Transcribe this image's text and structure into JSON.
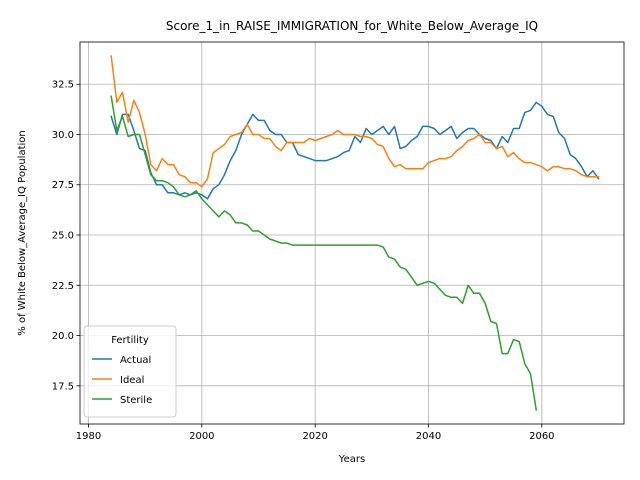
{
  "chart_data": {
    "type": "line",
    "title": "Score_1_in_RAISE_IMMIGRATION_for_White_Below_Average_IQ",
    "xlabel": "Years",
    "ylabel": "% of White Below_Average_IQ Population",
    "xlim": [
      1978.5,
      2074.5
    ],
    "ylim": [
      15.6,
      34.6
    ],
    "xticks": [
      1980,
      2000,
      2020,
      2040,
      2060
    ],
    "xtick_labels": [
      "1980",
      "2000",
      "2020",
      "2040",
      "2060"
    ],
    "yticks": [
      17.5,
      20.0,
      22.5,
      25.0,
      27.5,
      30.0,
      32.5
    ],
    "ytick_labels": [
      "17.5",
      "20.0",
      "22.5",
      "25.0",
      "27.5",
      "30.0",
      "32.5"
    ],
    "grid": true,
    "legend": {
      "title": "Fertility",
      "placement": "lower-left"
    },
    "series": [
      {
        "name": "Actual",
        "color": "#1f77b4",
        "x": [
          1984,
          1985,
          1986,
          1987,
          1988,
          1989,
          1990,
          1991,
          1992,
          1993,
          1994,
          1995,
          1996,
          1997,
          1998,
          1999,
          2000,
          2001,
          2002,
          2003,
          2004,
          2005,
          2006,
          2007,
          2008,
          2009,
          2010,
          2011,
          2012,
          2013,
          2014,
          2015,
          2016,
          2017,
          2018,
          2019,
          2020,
          2021,
          2022,
          2023,
          2024,
          2025,
          2026,
          2027,
          2028,
          2029,
          2030,
          2031,
          2032,
          2033,
          2034,
          2035,
          2036,
          2037,
          2038,
          2039,
          2040,
          2041,
          2042,
          2043,
          2044,
          2045,
          2046,
          2047,
          2048,
          2049,
          2050,
          2051,
          2052,
          2053,
          2054,
          2055,
          2056,
          2057,
          2058,
          2059,
          2060,
          2061,
          2062,
          2063,
          2064,
          2065,
          2066,
          2067,
          2068,
          2069,
          2070
        ],
        "y": [
          30.9,
          30.0,
          31.0,
          31.0,
          30.2,
          29.3,
          29.2,
          28.1,
          27.5,
          27.5,
          27.1,
          27.1,
          27.0,
          27.1,
          27.0,
          27.1,
          27.0,
          26.8,
          27.3,
          27.5,
          28.0,
          28.7,
          29.2,
          30.0,
          30.5,
          31.0,
          30.7,
          30.7,
          30.2,
          30.0,
          30.0,
          29.6,
          29.6,
          29.0,
          28.9,
          28.8,
          28.7,
          28.7,
          28.7,
          28.8,
          28.9,
          29.1,
          29.2,
          29.9,
          29.6,
          30.3,
          30.0,
          30.2,
          30.4,
          30.0,
          30.4,
          29.3,
          29.4,
          29.7,
          29.9,
          30.4,
          30.4,
          30.3,
          30.0,
          30.2,
          30.4,
          29.8,
          30.1,
          30.3,
          30.3,
          30.0,
          29.8,
          29.7,
          29.3,
          29.9,
          29.6,
          30.3,
          30.3,
          31.1,
          31.2,
          31.6,
          31.4,
          31.0,
          30.9,
          30.1,
          29.8,
          29.0,
          28.8,
          28.4,
          27.9,
          28.2,
          27.8
        ]
      },
      {
        "name": "Ideal",
        "color": "#ff7f0e",
        "x": [
          1984,
          1985,
          1986,
          1987,
          1988,
          1989,
          1990,
          1991,
          1992,
          1993,
          1994,
          1995,
          1996,
          1997,
          1998,
          1999,
          2000,
          2001,
          2002,
          2003,
          2004,
          2005,
          2006,
          2007,
          2008,
          2009,
          2010,
          2011,
          2012,
          2013,
          2014,
          2015,
          2016,
          2017,
          2018,
          2019,
          2020,
          2021,
          2022,
          2023,
          2024,
          2025,
          2026,
          2027,
          2028,
          2029,
          2030,
          2031,
          2032,
          2033,
          2034,
          2035,
          2036,
          2037,
          2038,
          2039,
          2040,
          2041,
          2042,
          2043,
          2044,
          2045,
          2046,
          2047,
          2048,
          2049,
          2050,
          2051,
          2052,
          2053,
          2054,
          2055,
          2056,
          2057,
          2058,
          2059,
          2060,
          2061,
          2062,
          2063,
          2064,
          2065,
          2066,
          2067,
          2068,
          2069,
          2070
        ],
        "y": [
          33.9,
          31.6,
          32.1,
          30.6,
          31.7,
          31.1,
          30.0,
          28.5,
          28.2,
          28.8,
          28.5,
          28.5,
          28.0,
          27.9,
          27.6,
          27.6,
          27.4,
          27.8,
          29.1,
          29.3,
          29.5,
          29.9,
          30.0,
          30.1,
          30.5,
          30.0,
          30.0,
          29.8,
          29.8,
          29.4,
          29.2,
          29.6,
          29.6,
          29.6,
          29.6,
          29.8,
          29.7,
          29.8,
          29.9,
          30.0,
          30.2,
          30.0,
          30.0,
          30.0,
          29.9,
          29.9,
          29.8,
          29.5,
          29.4,
          28.8,
          28.4,
          28.5,
          28.3,
          28.3,
          28.3,
          28.3,
          28.6,
          28.7,
          28.8,
          28.8,
          28.9,
          29.2,
          29.4,
          29.7,
          29.8,
          30.0,
          29.6,
          29.6,
          29.3,
          29.4,
          28.9,
          29.1,
          28.8,
          28.6,
          28.6,
          28.5,
          28.4,
          28.2,
          28.4,
          28.4,
          28.3,
          28.3,
          28.2,
          28.0,
          27.9,
          27.9,
          27.9
        ]
      },
      {
        "name": "Sterile",
        "color": "#2ca02c",
        "x": [
          1984,
          1985,
          1986,
          1987,
          1988,
          1989,
          1990,
          1991,
          1992,
          1993,
          1994,
          1995,
          1996,
          1997,
          1998,
          1999,
          2000,
          2001,
          2002,
          2003,
          2004,
          2005,
          2006,
          2007,
          2008,
          2009,
          2010,
          2011,
          2012,
          2013,
          2014,
          2015,
          2016,
          2017,
          2018,
          2019,
          2020,
          2021,
          2022,
          2023,
          2024,
          2025,
          2026,
          2027,
          2028,
          2029,
          2030,
          2031,
          2032,
          2033,
          2034,
          2035,
          2036,
          2037,
          2038,
          2039,
          2040,
          2041,
          2042,
          2043,
          2044,
          2045,
          2046,
          2047,
          2048,
          2049,
          2050,
          2051,
          2052,
          2053,
          2054,
          2055,
          2056,
          2057,
          2058,
          2059
        ],
        "y": [
          31.9,
          30.2,
          30.9,
          29.9,
          30.0,
          30.0,
          29.0,
          28.0,
          27.7,
          27.7,
          27.6,
          27.4,
          27.0,
          26.9,
          27.0,
          27.2,
          26.8,
          26.5,
          26.2,
          25.9,
          26.2,
          26.0,
          25.6,
          25.6,
          25.5,
          25.2,
          25.2,
          25.0,
          24.8,
          24.7,
          24.6,
          24.6,
          24.5,
          24.5,
          24.5,
          24.5,
          24.5,
          24.5,
          24.5,
          24.5,
          24.5,
          24.5,
          24.5,
          24.5,
          24.5,
          24.5,
          24.5,
          24.5,
          24.4,
          23.9,
          23.8,
          23.4,
          23.3,
          22.9,
          22.5,
          22.6,
          22.7,
          22.6,
          22.3,
          22.0,
          21.9,
          21.9,
          21.6,
          22.5,
          22.1,
          22.1,
          21.6,
          20.7,
          20.6,
          19.1,
          19.1,
          19.8,
          19.7,
          18.6,
          18.1,
          16.3
        ]
      }
    ]
  }
}
